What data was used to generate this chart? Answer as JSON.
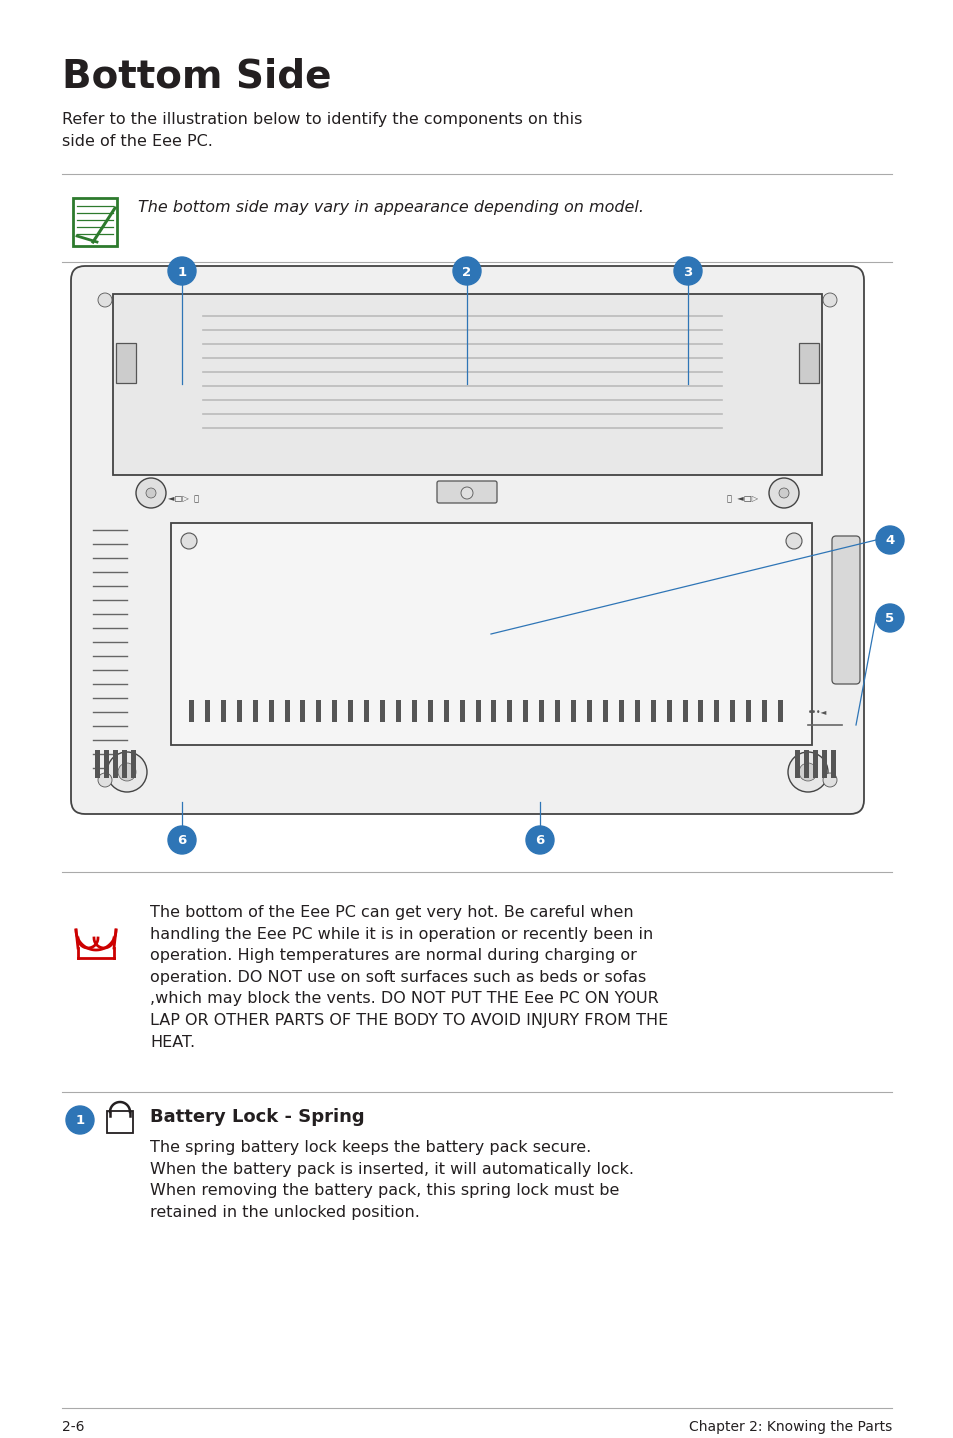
{
  "title": "Bottom Side",
  "subtitle": "Refer to the illustration below to identify the components on this\nside of the Eee PC.",
  "note_text": "The bottom side may vary in appearance depending on model.",
  "warning_text": "The bottom of the Eee PC can get very hot. Be careful when\nhandling the Eee PC while it is in operation or recently been in\noperation. High temperatures are normal during charging or\noperation. DO NOT use on soft surfaces such as beds or sofas\n,which may block the vents. DO NOT PUT THE Eee PC ON YOUR\nLAP OR OTHER PARTS OF THE BODY TO AVOID INJURY FROM THE\nHEAT.",
  "component_number": "1",
  "component_title": "Battery Lock - Spring",
  "component_text": "The spring battery lock keeps the battery pack secure.\nWhen the battery pack is inserted, it will automatically lock.\nWhen removing the battery pack, this spring lock must be\nretained in the unlocked position.",
  "footer_left": "2-6",
  "footer_right": "Chapter 2: Knowing the Parts",
  "bg_color": "#ffffff",
  "text_color": "#231f20",
  "blue_color": "#2e75b6",
  "line_color": "#aaaaaa",
  "title_fontsize": 28,
  "body_fontsize": 11.5,
  "note_fontsize": 11.5,
  "component_title_fontsize": 13,
  "footer_fontsize": 10
}
